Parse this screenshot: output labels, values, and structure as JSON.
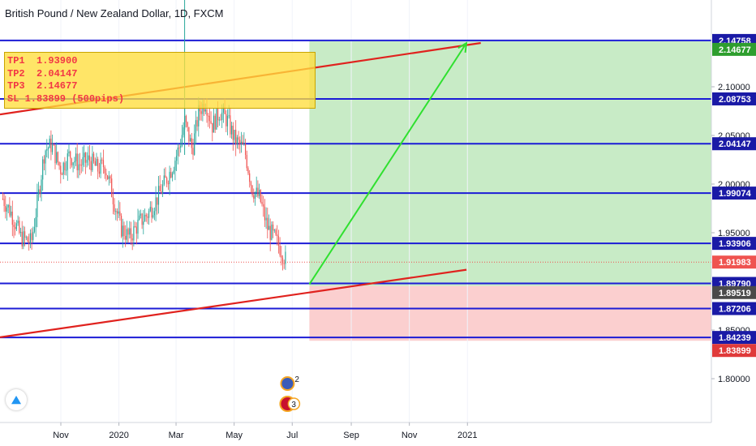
{
  "header": {
    "title": "British Pound / New Zealand Dollar, 1D, FXCM"
  },
  "annotation": {
    "lines": [
      "TP1  1.93900",
      "TP2  2.04147",
      "TP3  2.14677",
      "SL 1.83899 (500pips)"
    ]
  },
  "markers": {
    "earnings_count": "2",
    "events_count": "3"
  },
  "colors": {
    "background": "#ffffff",
    "level_line": "#1c1cd6",
    "trendline": "#e0221e",
    "arrow": "#2fe02f",
    "profit_zone": "#c8ebc6",
    "loss_zone": "#fbcfcf",
    "candle_up": "#26a69a",
    "candle_down": "#ef5350",
    "current_price": "#ef5350",
    "label_blue": "#1a1aa6",
    "label_green": "#2e9e2e",
    "label_red": "#e03a3a"
  },
  "chart_data": {
    "type": "candlestick",
    "title": "British Pound / New Zealand Dollar, 1D, FXCM",
    "x_ticks": [
      "Nov",
      "2020",
      "Mar",
      "May",
      "Jul",
      "Sep",
      "Nov",
      "2021"
    ],
    "y_ticks": [
      "1.80000",
      "1.85000",
      "1.90000",
      "1.95000",
      "2.00000",
      "2.05000",
      "2.10000"
    ],
    "ylim": [
      1.76,
      2.21
    ],
    "current_price": "1.91983",
    "horizontal_levels": [
      "2.14758",
      "2.08753",
      "2.04147",
      "1.99074",
      "1.93906",
      "1.89790",
      "1.87206",
      "1.84239"
    ],
    "price_labels": [
      {
        "value": "2.14758",
        "style": "blue"
      },
      {
        "value": "2.14677",
        "style": "green"
      },
      {
        "value": "2.08753",
        "style": "blue"
      },
      {
        "value": "2.04147",
        "style": "blue"
      },
      {
        "value": "1.99074",
        "style": "blue"
      },
      {
        "value": "1.93906",
        "style": "blue"
      },
      {
        "value": "1.91983",
        "style": "current"
      },
      {
        "value": "1.89790",
        "style": "blue"
      },
      {
        "value": "1.89519",
        "style": "gray"
      },
      {
        "value": "1.87206",
        "style": "blue"
      },
      {
        "value": "1.84239",
        "style": "blue"
      },
      {
        "value": "1.83899",
        "style": "red"
      }
    ],
    "trendlines": [
      {
        "name": "upper",
        "from": [
          "2019-09-01",
          2.072
        ],
        "to": [
          "2021-01-15",
          2.145
        ]
      },
      {
        "name": "lower",
        "from": [
          "2019-09-01",
          1.843
        ],
        "to": [
          "2020-12-31",
          1.912
        ]
      }
    ],
    "position": {
      "start": "2020-07-19",
      "end": "2021-01-31",
      "entry": 1.89519,
      "target": 2.14677,
      "stop": 1.83899
    },
    "arrow": {
      "from": [
        "2020-07-19",
        1.897
      ],
      "to": [
        "2020-12-31",
        2.145
      ]
    },
    "price_path": [
      [
        "2019-09-01",
        1.985
      ],
      [
        "2019-09-10",
        1.97
      ],
      [
        "2019-09-20",
        1.945
      ],
      [
        "2019-10-01",
        1.94
      ],
      [
        "2019-10-08",
        1.985
      ],
      [
        "2019-10-15",
        2.035
      ],
      [
        "2019-10-22",
        2.04
      ],
      [
        "2019-11-01",
        2.015
      ],
      [
        "2019-11-10",
        2.03
      ],
      [
        "2019-11-20",
        2.02
      ],
      [
        "2019-12-01",
        2.025
      ],
      [
        "2019-12-10",
        2.015
      ],
      [
        "2019-12-17",
        2.02
      ],
      [
        "2019-12-25",
        1.99
      ],
      [
        "2020-01-03",
        1.955
      ],
      [
        "2020-01-12",
        1.945
      ],
      [
        "2020-01-22",
        1.96
      ],
      [
        "2020-02-01",
        1.97
      ],
      [
        "2020-02-10",
        1.985
      ],
      [
        "2020-02-20",
        2.005
      ],
      [
        "2020-02-27",
        2.02
      ],
      [
        "2020-03-05",
        2.04
      ],
      [
        "2020-03-10",
        2.065
      ],
      [
        "2020-03-18",
        2.035
      ],
      [
        "2020-03-25",
        2.075
      ],
      [
        "2020-04-01",
        2.085
      ],
      [
        "2020-04-08",
        2.06
      ],
      [
        "2020-04-16",
        2.075
      ],
      [
        "2020-04-24",
        2.065
      ],
      [
        "2020-05-02",
        2.045
      ],
      [
        "2020-05-12",
        2.035
      ],
      [
        "2020-05-20",
        1.995
      ],
      [
        "2020-05-28",
        1.985
      ],
      [
        "2020-06-05",
        1.955
      ],
      [
        "2020-06-12",
        1.945
      ],
      [
        "2020-06-18",
        1.935
      ],
      [
        "2020-06-25",
        1.92
      ]
    ]
  }
}
